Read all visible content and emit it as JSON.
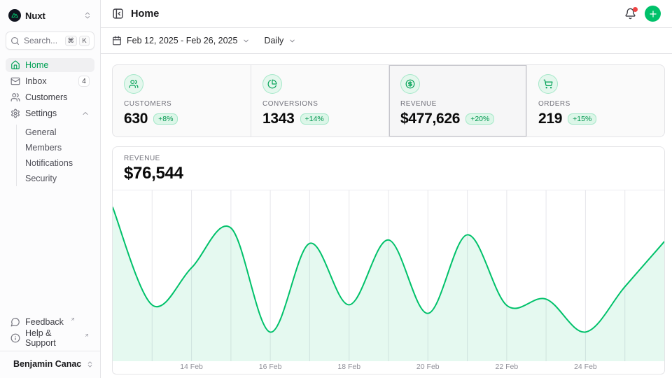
{
  "colors": {
    "primary": "#00C16A",
    "primary_text": "#00A155",
    "badge_bg": "#DCF6E8",
    "badge_text": "#00954E",
    "notification_dot": "#EF4444"
  },
  "sidebar": {
    "team": {
      "name": "Nuxt",
      "logo_icon": "nuxt-logo",
      "menu_icon": "chevrons-up-down"
    },
    "search": {
      "placeholder": "Search...",
      "shortcut_keys": [
        "⌘",
        "K"
      ],
      "icon": "search"
    },
    "nav": [
      {
        "label": "Home",
        "icon": "house",
        "active": true
      },
      {
        "label": "Inbox",
        "icon": "mail",
        "badge": "4"
      },
      {
        "label": "Customers",
        "icon": "users"
      },
      {
        "label": "Settings",
        "icon": "gear",
        "expanded": true
      }
    ],
    "settings_children": [
      "General",
      "Members",
      "Notifications",
      "Security"
    ],
    "footer_nav": [
      {
        "label": "Feedback",
        "icon": "message-circle",
        "external": true
      },
      {
        "label": "Help & Support",
        "icon": "info-circle",
        "external": true
      }
    ],
    "user": {
      "name": "Benjamin Canac",
      "menu_icon": "chevrons-up-down"
    }
  },
  "header": {
    "title": "Home",
    "collapse_icon": "panel-left-close",
    "notifications_icon": "bell",
    "has_notification": true,
    "new_button_icon": "plus"
  },
  "toolbar": {
    "date_range": "Feb 12, 2025 - Feb 26, 2025",
    "period": "Daily"
  },
  "stats": [
    {
      "label": "CUSTOMERS",
      "value": "630",
      "delta": "+8%",
      "icon": "users"
    },
    {
      "label": "CONVERSIONS",
      "value": "1343",
      "delta": "+14%",
      "icon": "pie-chart"
    },
    {
      "label": "REVENUE",
      "value": "$477,626",
      "delta": "+20%",
      "icon": "circle-dollar",
      "selected": true
    },
    {
      "label": "ORDERS",
      "value": "219",
      "delta": "+15%",
      "icon": "shopping-cart"
    }
  ],
  "chart": {
    "label": "REVENUE",
    "value": "$76,544"
  },
  "chart_data": {
    "type": "area",
    "title": "Revenue (Daily, Feb 12 - Feb 26 2025)",
    "x": [
      "12 Feb",
      "13 Feb",
      "14 Feb",
      "15 Feb",
      "16 Feb",
      "17 Feb",
      "18 Feb",
      "19 Feb",
      "20 Feb",
      "21 Feb",
      "22 Feb",
      "23 Feb",
      "24 Feb",
      "25 Feb",
      "26 Feb"
    ],
    "values": [
      76544,
      28000,
      46500,
      66300,
      14450,
      58650,
      28050,
      60350,
      23800,
      62900,
      27800,
      30900,
      14500,
      37100,
      59500
    ],
    "x_labels": [
      "14 Feb",
      "16 Feb",
      "18 Feb",
      "20 Feb",
      "22 Feb",
      "24 Feb"
    ],
    "ylim": [
      0,
      85000
    ],
    "grid": "vertical-daily",
    "legend": "none",
    "line_color": "#00C16A",
    "fill_color": "rgba(0,193,106,0.10)",
    "grid_color": "#e7e7eb"
  }
}
